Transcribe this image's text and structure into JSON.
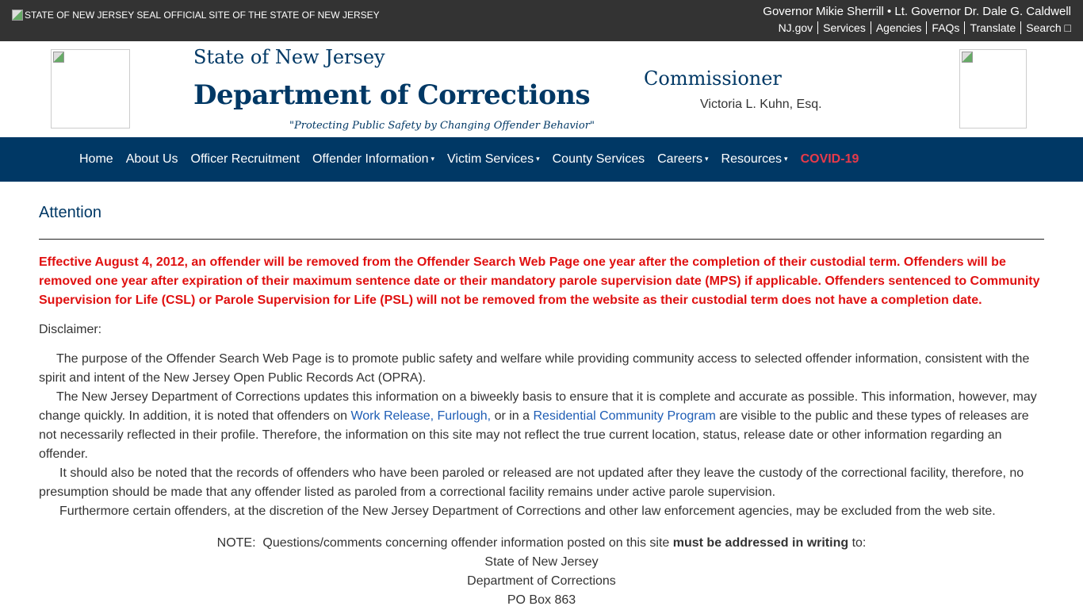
{
  "topbar": {
    "seal_alt": "STATE OF NEW JERSEY SEAL",
    "official": "OFFICIAL SITE OF THE STATE OF NEW JERSEY",
    "governor": "Governor Mikie Sherrill • Lt. Governor Dr. Dale G. Caldwell",
    "links": [
      "NJ.gov",
      "Services",
      "Agencies",
      "FAQs",
      "Translate",
      "Search □"
    ]
  },
  "header": {
    "state": "State of New Jersey",
    "dept": "Department of Corrections",
    "motto": "\"Protecting Public Safety by Changing Offender Behavior\"",
    "commissioner_label": "Commissioner",
    "commissioner_name": "Victoria L. Kuhn, Esq."
  },
  "nav": {
    "items": [
      "Home",
      "About Us",
      "Officer Recruitment",
      "Offender Information",
      "Victim Services",
      "County Services",
      "Careers",
      "Resources",
      "COVID-19"
    ],
    "caret": "▾"
  },
  "main": {
    "title": "Attention",
    "warning": "Effective August 4, 2012, an offender will be removed from the Offender Search Web Page one year after the completion of their custodial term. Offenders will be removed one year after expiration of their maximum sentence date or their mandatory parole supervision date (MPS) if applicable. Offenders sentenced to Community Supervision for Life (CSL) or Parole Supervision for Life (PSL) will not be removed from the website as their custodial term does not have a completion date.",
    "disclaimer": "Disclaimer:",
    "p1": "The purpose of the Offender Search Web Page is to promote public safety and welfare while providing community access to selected offender information, consistent with the spirit and intent of the New Jersey Open Public Records Act (OPRA).",
    "p2a": "The New Jersey Department of Corrections updates this information on a biweekly basis to ensure that it is complete and accurate as possible. This information, however, may change quickly. In addition, it is noted that offenders on ",
    "p2_link1": "Work Release, Furlough,",
    "p2b": " or in a ",
    "p2_link2": "Residential Community Program",
    "p2c": " are visible to the public and these types of releases are not necessarily reflected in their profile. Therefore, the information on this site may not reflect the true current location, status, release date or other information regarding an offender.",
    "p3": "It should also be noted that the records of offenders who have been paroled or released are not updated after they leave the custody of the correctional facility, therefore, no presumption should be made that any offender listed as paroled from a correctional facility remains under active parole supervision.",
    "p4": "Furthermore certain offenders, at the discretion of the New Jersey Department of Corrections and other law enforcement agencies, may be excluded from the web site.",
    "note_a": "NOTE:  Questions/comments concerning offender information posted on this site ",
    "note_bold": "must be addressed in writing",
    "note_b": " to:",
    "address": [
      "State of New Jersey",
      "Department of Corrections",
      "PO Box 863"
    ]
  }
}
